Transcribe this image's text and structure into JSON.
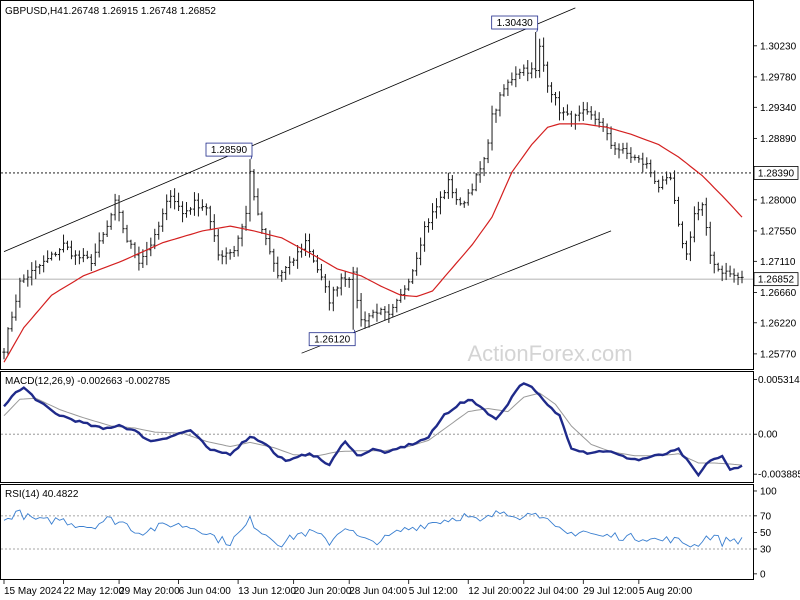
{
  "header": {
    "symbol": "GBPUSD,H4",
    "ohlc": "1.26748 1.26915 1.26748 1.26852"
  },
  "watermark": "ActionForex.com",
  "colors": {
    "candle": "#1a1a1a",
    "ma": "#d42020",
    "macd": "#1f2a8a",
    "signal": "#9a9a9a",
    "rsi": "#3a7fd0",
    "grid": "#000000",
    "current_box": "#000000"
  },
  "chart_data": [
    {
      "type": "line",
      "name": "price",
      "ylim": [
        1.2558,
        1.3085
      ],
      "yticks": [
        "1.30230",
        "1.29780",
        "1.29340",
        "1.28890",
        "1.28000",
        "1.27550",
        "1.27110",
        "1.26660",
        "1.26220",
        "1.25770"
      ],
      "horizontal_line": "1.28390",
      "current_price": "1.26852",
      "annotations": [
        {
          "label": "1.28590",
          "value": 1.2859,
          "bar": 62
        },
        {
          "label": "1.30430",
          "value": 1.3043,
          "bar": 134
        },
        {
          "label": "1.26120",
          "value": 1.2612,
          "bar": 88
        }
      ],
      "channel": {
        "upper": [
          [
            0,
            1.2725
          ],
          [
            144,
            1.3078
          ]
        ],
        "lower": [
          [
            75,
            1.2578
          ],
          [
            153,
            1.2755
          ]
        ]
      },
      "close_anchors": [
        [
          0,
          1.2585
        ],
        [
          4,
          1.268
        ],
        [
          8,
          1.27
        ],
        [
          12,
          1.2718
        ],
        [
          15,
          1.2735
        ],
        [
          18,
          1.2718
        ],
        [
          22,
          1.2712
        ],
        [
          26,
          1.276
        ],
        [
          28,
          1.2795
        ],
        [
          31,
          1.2742
        ],
        [
          34,
          1.2712
        ],
        [
          38,
          1.2745
        ],
        [
          42,
          1.281
        ],
        [
          45,
          1.278
        ],
        [
          48,
          1.2795
        ],
        [
          51,
          1.279
        ],
        [
          54,
          1.272
        ],
        [
          58,
          1.2728
        ],
        [
          61,
          1.278
        ],
        [
          62,
          1.284
        ],
        [
          64,
          1.2775
        ],
        [
          66,
          1.274
        ],
        [
          69,
          1.269
        ],
        [
          72,
          1.2705
        ],
        [
          76,
          1.274
        ],
        [
          79,
          1.27
        ],
        [
          82,
          1.2655
        ],
        [
          85,
          1.2688
        ],
        [
          88,
          1.269
        ],
        [
          90,
          1.2625
        ],
        [
          94,
          1.264
        ],
        [
          97,
          1.263
        ],
        [
          100,
          1.266
        ],
        [
          103,
          1.27
        ],
        [
          106,
          1.276
        ],
        [
          109,
          1.279
        ],
        [
          112,
          1.2825
        ],
        [
          115,
          1.279
        ],
        [
          118,
          1.282
        ],
        [
          121,
          1.2855
        ],
        [
          123,
          1.292
        ],
        [
          126,
          1.296
        ],
        [
          129,
          1.2985
        ],
        [
          131,
          1.299
        ],
        [
          134,
          1.2985
        ],
        [
          135,
          1.302
        ],
        [
          137,
          1.297
        ],
        [
          140,
          1.293
        ],
        [
          143,
          1.2915
        ],
        [
          146,
          1.2925
        ],
        [
          150,
          1.2915
        ],
        [
          153,
          1.288
        ],
        [
          156,
          1.287
        ],
        [
          159,
          1.286
        ],
        [
          162,
          1.285
        ],
        [
          165,
          1.282
        ],
        [
          168,
          1.283
        ],
        [
          170,
          1.276
        ],
        [
          172,
          1.272
        ],
        [
          174,
          1.278
        ],
        [
          176,
          1.279
        ],
        [
          178,
          1.272
        ],
        [
          180,
          1.27
        ],
        [
          182,
          1.2695
        ],
        [
          184,
          1.269
        ],
        [
          186,
          1.2685
        ]
      ],
      "ma_anchors": [
        [
          0,
          1.2565
        ],
        [
          5,
          1.2615
        ],
        [
          12,
          1.2662
        ],
        [
          20,
          1.269
        ],
        [
          30,
          1.2712
        ],
        [
          40,
          1.2738
        ],
        [
          50,
          1.2755
        ],
        [
          57,
          1.2762
        ],
        [
          63,
          1.2755
        ],
        [
          70,
          1.2745
        ],
        [
          78,
          1.272
        ],
        [
          84,
          1.27
        ],
        [
          90,
          1.269
        ],
        [
          95,
          1.2675
        ],
        [
          100,
          1.2662
        ],
        [
          104,
          1.266
        ],
        [
          108,
          1.2668
        ],
        [
          112,
          1.2695
        ],
        [
          118,
          1.2735
        ],
        [
          123,
          1.2775
        ],
        [
          128,
          1.284
        ],
        [
          133,
          1.288
        ],
        [
          137,
          1.2905
        ],
        [
          140,
          1.291
        ],
        [
          146,
          1.291
        ],
        [
          152,
          1.2905
        ],
        [
          158,
          1.2895
        ],
        [
          165,
          1.288
        ],
        [
          170,
          1.2862
        ],
        [
          176,
          1.2835
        ],
        [
          182,
          1.28
        ],
        [
          186,
          1.2775
        ]
      ]
    },
    {
      "type": "line",
      "name": "MACD(12,26,9) -0.002663 -0.002785",
      "ylim": [
        -0.00455,
        0.00595
      ],
      "yticks": [
        "0.005314",
        "0.00",
        "-0.003885"
      ],
      "zero_label": "0.00",
      "macd_anchors": [
        [
          0,
          0.0026
        ],
        [
          2,
          0.0038
        ],
        [
          5,
          0.0045
        ],
        [
          9,
          0.0031
        ],
        [
          13,
          0.002
        ],
        [
          19,
          0.0012
        ],
        [
          25,
          0.0005
        ],
        [
          29,
          0.0009
        ],
        [
          33,
          0.0003
        ],
        [
          37,
          -0.0007
        ],
        [
          42,
          -0.0002
        ],
        [
          47,
          0.0004
        ],
        [
          52,
          -0.0016
        ],
        [
          57,
          -0.0019
        ],
        [
          62,
          -0.0002
        ],
        [
          66,
          -0.0009
        ],
        [
          69,
          -0.0022
        ],
        [
          72,
          -0.0026
        ],
        [
          77,
          -0.0018
        ],
        [
          82,
          -0.003
        ],
        [
          86,
          -0.0006
        ],
        [
          89,
          -0.0021
        ],
        [
          93,
          -0.0015
        ],
        [
          97,
          -0.0018
        ],
        [
          100,
          -0.0013
        ],
        [
          104,
          -0.0008
        ],
        [
          107,
          -0.0003
        ],
        [
          111,
          0.0019
        ],
        [
          115,
          0.003
        ],
        [
          118,
          0.0033
        ],
        [
          121,
          0.0024
        ],
        [
          124,
          0.0014
        ],
        [
          127,
          0.003
        ],
        [
          130,
          0.0048
        ],
        [
          132,
          0.0049
        ],
        [
          135,
          0.0037
        ],
        [
          137,
          0.0028
        ],
        [
          140,
          0.0018
        ],
        [
          143,
          -0.0013
        ],
        [
          147,
          -0.0018
        ],
        [
          152,
          -0.0016
        ],
        [
          156,
          -0.0022
        ],
        [
          160,
          -0.0025
        ],
        [
          163,
          -0.0022
        ],
        [
          166,
          -0.002
        ],
        [
          170,
          -0.0015
        ],
        [
          173,
          -0.003
        ],
        [
          175,
          -0.004
        ],
        [
          178,
          -0.0025
        ],
        [
          181,
          -0.0022
        ],
        [
          183,
          -0.0035
        ],
        [
          186,
          -0.003
        ]
      ],
      "signal_anchors": [
        [
          0,
          0.0018
        ],
        [
          4,
          0.0034
        ],
        [
          8,
          0.0035
        ],
        [
          14,
          0.0024
        ],
        [
          20,
          0.0016
        ],
        [
          27,
          0.0008
        ],
        [
          33,
          0.0006
        ],
        [
          38,
          0.0002
        ],
        [
          45,
          0.0001
        ],
        [
          51,
          -0.0007
        ],
        [
          57,
          -0.0012
        ],
        [
          62,
          -0.0008
        ],
        [
          68,
          -0.0013
        ],
        [
          73,
          -0.002
        ],
        [
          79,
          -0.0021
        ],
        [
          84,
          -0.0017
        ],
        [
          90,
          -0.0016
        ],
        [
          96,
          -0.0016
        ],
        [
          102,
          -0.0012
        ],
        [
          107,
          -0.0006
        ],
        [
          112,
          0.0008
        ],
        [
          117,
          0.0022
        ],
        [
          122,
          0.0025
        ],
        [
          127,
          0.0022
        ],
        [
          131,
          0.0036
        ],
        [
          135,
          0.004
        ],
        [
          139,
          0.0029
        ],
        [
          143,
          0.0008
        ],
        [
          148,
          -0.001
        ],
        [
          153,
          -0.0017
        ],
        [
          159,
          -0.0021
        ],
        [
          165,
          -0.0021
        ],
        [
          170,
          -0.0019
        ],
        [
          175,
          -0.0028
        ],
        [
          179,
          -0.0028
        ],
        [
          183,
          -0.0029
        ],
        [
          186,
          -0.003
        ]
      ]
    },
    {
      "type": "line",
      "name": "RSI(14) 40.4822",
      "ylim": [
        -5,
        106
      ],
      "yticks": [
        "100",
        "70",
        "50",
        "30",
        "0"
      ],
      "levels": [
        70,
        30
      ],
      "rsi_anchors": [
        [
          0,
          62
        ],
        [
          3,
          75
        ],
        [
          6,
          68
        ],
        [
          10,
          63
        ],
        [
          14,
          66
        ],
        [
          18,
          60
        ],
        [
          22,
          57
        ],
        [
          26,
          66
        ],
        [
          30,
          62
        ],
        [
          34,
          50
        ],
        [
          38,
          55
        ],
        [
          42,
          60
        ],
        [
          46,
          58
        ],
        [
          50,
          53
        ],
        [
          54,
          42
        ],
        [
          57,
          38
        ],
        [
          60,
          52
        ],
        [
          62,
          65
        ],
        [
          64,
          55
        ],
        [
          67,
          45
        ],
        [
          70,
          36
        ],
        [
          74,
          48
        ],
        [
          78,
          50
        ],
        [
          82,
          38
        ],
        [
          86,
          58
        ],
        [
          89,
          45
        ],
        [
          92,
          38
        ],
        [
          96,
          42
        ],
        [
          100,
          52
        ],
        [
          104,
          57
        ],
        [
          108,
          62
        ],
        [
          112,
          66
        ],
        [
          116,
          70
        ],
        [
          120,
          62
        ],
        [
          123,
          70
        ],
        [
          126,
          76
        ],
        [
          129,
          72
        ],
        [
          131,
          68
        ],
        [
          134,
          78
        ],
        [
          136,
          66
        ],
        [
          139,
          54
        ],
        [
          142,
          48
        ],
        [
          146,
          52
        ],
        [
          150,
          45
        ],
        [
          154,
          46
        ],
        [
          158,
          44
        ],
        [
          162,
          44
        ],
        [
          165,
          40
        ],
        [
          168,
          42
        ],
        [
          171,
          38
        ],
        [
          174,
          34
        ],
        [
          177,
          44
        ],
        [
          179,
          46
        ],
        [
          181,
          38
        ],
        [
          183,
          42
        ],
        [
          186,
          40
        ]
      ]
    }
  ],
  "xlabels": [
    {
      "label": "15 May 2024",
      "bar": 0
    },
    {
      "label": "22 May 12:00",
      "bar": 15
    },
    {
      "label": "29 May 20:00",
      "bar": 29
    },
    {
      "label": "6 Jun 04:00",
      "bar": 44
    },
    {
      "label": "13 Jun 12:00",
      "bar": 59
    },
    {
      "label": "20 Jun 20:00",
      "bar": 73
    },
    {
      "label": "28 Jun 04:00",
      "bar": 87
    },
    {
      "label": "5 Jul 12:00",
      "bar": 102
    },
    {
      "label": "12 Jul 20:00",
      "bar": 117
    },
    {
      "label": "22 Jul 04:00",
      "bar": 131
    },
    {
      "label": "29 Jul 12:00",
      "bar": 146
    },
    {
      "label": "5 Aug 20:00",
      "bar": 160
    }
  ],
  "bar_count": 187
}
